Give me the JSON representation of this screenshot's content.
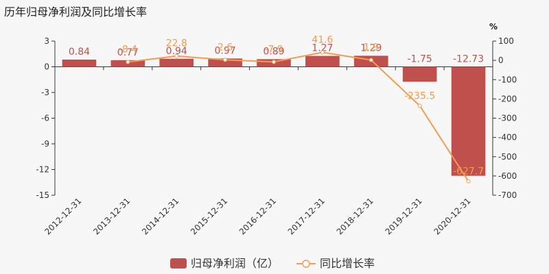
{
  "chart_data": {
    "type": "bar+line",
    "title": "历年归母净利润及同比增长率",
    "categories": [
      "2012-12-31",
      "2013-12-31",
      "2014-12-31",
      "2015-12-31",
      "2016-12-31",
      "2017-12-31",
      "2018-12-31",
      "2019-12-31",
      "2020-12-31"
    ],
    "series": [
      {
        "name": "归母净利润（亿）",
        "type": "bar",
        "axis": "left",
        "color": "#c0504d",
        "values": [
          0.84,
          0.77,
          0.94,
          0.97,
          0.89,
          1.27,
          1.29,
          -1.75,
          -12.73
        ],
        "labels": [
          "0.84",
          "0.77",
          "0.94",
          "0.97",
          "0.89",
          "1.27",
          "1.29",
          "-1.75",
          "-12.73"
        ]
      },
      {
        "name": "同比增长率",
        "type": "line",
        "axis": "right",
        "color": "#f39c4d",
        "values": [
          null,
          -8.4,
          22.8,
          2.6,
          -7.9,
          41.6,
          1.9,
          -235.5,
          -627.7
        ],
        "labels": [
          "",
          "-8.4",
          "22.8",
          "2.6",
          "-7.9",
          "41.6",
          "1.9",
          "-235.5",
          "-627.7"
        ]
      }
    ],
    "y_left": {
      "ylim": [
        -15,
        3
      ],
      "ticks": [
        3,
        0,
        -3,
        -6,
        -9,
        -12,
        -15
      ]
    },
    "y_right": {
      "unit": "%",
      "ylim": [
        -700,
        100
      ],
      "ticks": [
        100,
        0,
        -100,
        -200,
        -300,
        -400,
        -500,
        -600,
        -700
      ]
    },
    "legend_position": "bottom-center",
    "grid": false
  }
}
